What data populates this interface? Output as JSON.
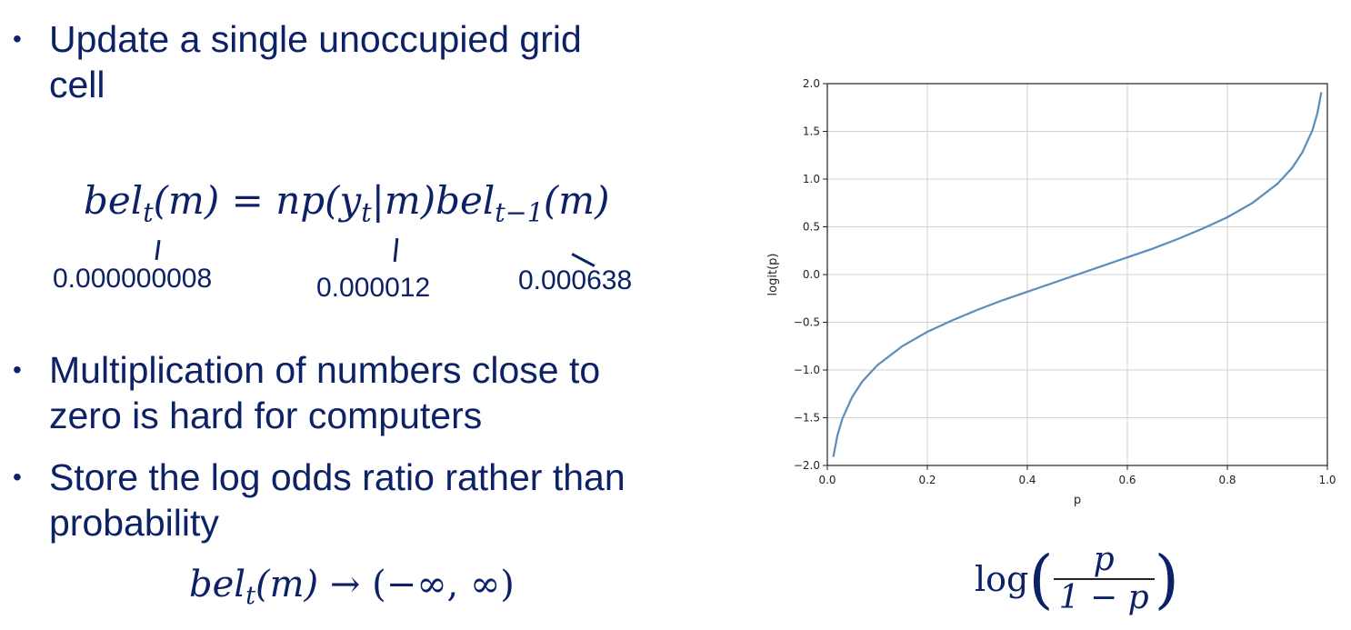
{
  "bullets": [
    {
      "line1": "Update a single unoccupied grid",
      "line2": "cell"
    },
    {
      "line1": "Multiplication of numbers close to",
      "line2": "zero is hard for computers"
    },
    {
      "line1": "Store the log odds ratio rather than",
      "line2": "probability"
    }
  ],
  "equation": {
    "lhs": "bel",
    "lhs_sub": "t",
    "lhs_arg": "(m)",
    "eq": " = ",
    "n": "np",
    "mid": "(y",
    "mid_sub": "t",
    "mid_rest": "|m)",
    "bel2": "bel",
    "bel2_sub": "t−1",
    "bel2_arg": "(m)"
  },
  "values": [
    "0.000000008",
    "0.000012",
    "0.000638"
  ],
  "range_eq": {
    "bel": "bel",
    "sub": "t",
    "arg": "(m)",
    "arrow": " → ",
    "range": "(−∞, ∞)"
  },
  "logit_formula": {
    "log": "log",
    "num": "p",
    "den": "1 − p"
  },
  "chart_data": {
    "type": "line",
    "xlabel": "p",
    "ylabel": "logit(p)",
    "xlim": [
      0.0,
      1.0
    ],
    "ylim": [
      -2.0,
      2.0
    ],
    "grid": true,
    "x_ticks": [
      0.0,
      0.2,
      0.4,
      0.6,
      0.8,
      1.0
    ],
    "y_ticks": [
      -2.0,
      -1.5,
      -1.0,
      -0.5,
      0.0,
      0.5,
      1.0,
      1.5,
      2.0
    ],
    "x_tick_labels": [
      "0.0",
      "0.2",
      "0.4",
      "0.6",
      "0.8",
      "1.0"
    ],
    "y_tick_labels": [
      "−2.0",
      "−1.5",
      "−1.0",
      "−0.5",
      "0.0",
      "0.5",
      "1.0",
      "1.5",
      "2.0"
    ],
    "series": [
      {
        "color": "#5b8db8",
        "x": [
          0.012,
          0.02,
          0.03,
          0.05,
          0.07,
          0.1,
          0.15,
          0.2,
          0.25,
          0.3,
          0.35,
          0.4,
          0.45,
          0.5,
          0.55,
          0.6,
          0.65,
          0.7,
          0.75,
          0.8,
          0.85,
          0.9,
          0.93,
          0.95,
          0.97,
          0.98,
          0.988
        ],
        "y": [
          -1.91,
          -1.69,
          -1.51,
          -1.28,
          -1.12,
          -0.95,
          -0.75,
          -0.6,
          -0.48,
          -0.37,
          -0.27,
          -0.18,
          -0.09,
          0.0,
          0.09,
          0.18,
          0.27,
          0.37,
          0.48,
          0.6,
          0.75,
          0.95,
          1.12,
          1.28,
          1.51,
          1.69,
          1.91
        ]
      }
    ]
  }
}
